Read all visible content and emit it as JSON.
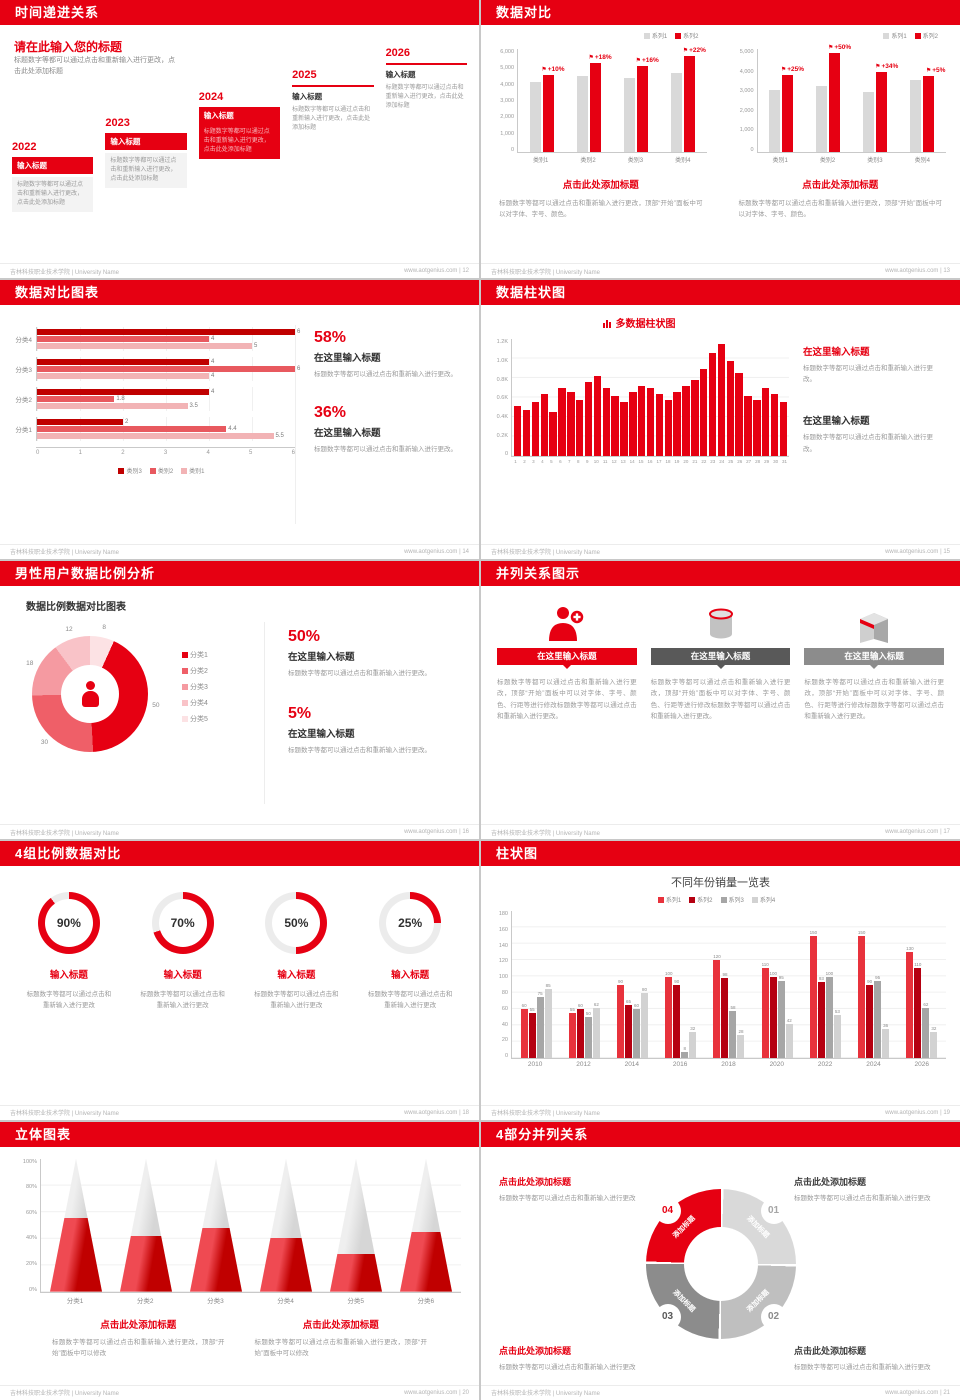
{
  "accent": "#e60012",
  "footer": {
    "school": "吉林科技职业技术学院 | University Name",
    "site": "www.aotgenius.com"
  },
  "slides": {
    "s12": {
      "header": "时间递进关系",
      "footer_right": "www.aotgenius.com | 12",
      "title": "请在此输入您的标题",
      "subtitle": "标题数字等都可以通过点击和重新输入进行更改，点击此处添加标题",
      "steps": [
        {
          "year": "2022",
          "label": "输入标题",
          "desc": "标题数字等都可以通过点击和重新输入进行更改，点击此处添加标题"
        },
        {
          "year": "2023",
          "label": "输入标题",
          "desc": "标题数字等都可以通过点击和重新输入进行更改，点击此处添加标题"
        },
        {
          "year": "2024",
          "label": "输入标题",
          "desc": "标题数字等都可以通过点击和重新输入进行更改，点击此处添加标题"
        },
        {
          "year": "2025",
          "label": "输入标题",
          "desc": "标题数字等都可以通过点击和重新输入进行更改，点击此处添加标题"
        },
        {
          "year": "2026",
          "label": "输入标题",
          "desc": "标题数字等都可以通过点击和重新输入进行更改，点击此处添加标题"
        }
      ]
    },
    "s13": {
      "header": "数据对比",
      "footer_right": "www.aotgenius.com | 13",
      "panels": [
        {
          "type": "bar",
          "legend": [
            {
              "label": "系列1",
              "color": "#d9d9d9"
            },
            {
              "label": "系列2",
              "color": "#e60012"
            }
          ],
          "yticks": [
            "6,000",
            "5,000",
            "4,000",
            "3,000",
            "2,000",
            "1,000",
            "0"
          ],
          "ymax": 6000,
          "categories": [
            "类别1",
            "类别2",
            "类别3",
            "类别4"
          ],
          "gray_values": [
            4100,
            4400,
            4300,
            4600
          ],
          "red_values": [
            4510,
            5192,
            4988,
            5612
          ],
          "pct_labels": [
            "+10%",
            "+18%",
            "+16%",
            "+22%"
          ],
          "title": "点击此处添加标题",
          "desc": "标题数字等都可以通过点击和重新输入进行更改，顶部“开始”面板中可以对字体、字号、颜色。"
        },
        {
          "type": "bar",
          "legend": [
            {
              "label": "系列1",
              "color": "#d9d9d9"
            },
            {
              "label": "系列2",
              "color": "#e60012"
            }
          ],
          "yticks": [
            "5,000",
            "4,000",
            "3,000",
            "2,000",
            "1,000",
            "0"
          ],
          "ymax": 5000,
          "categories": [
            "类别1",
            "类别2",
            "类别3",
            "类别4"
          ],
          "gray_values": [
            3000,
            3200,
            2900,
            3500
          ],
          "red_values": [
            3750,
            4800,
            3900,
            3675
          ],
          "pct_labels": [
            "+25%",
            "+50%",
            "+34%",
            "+5%"
          ],
          "title": "点击此处添加标题",
          "desc": "标题数字等都可以通过点击和重新输入进行更改，顶部“开始”面板中可以对字体、字号、颜色。"
        }
      ]
    },
    "s14": {
      "header": "数据对比图表",
      "footer_right": "www.aotgenius.com | 14",
      "chart": {
        "type": "bar",
        "xmax": 6,
        "xticks": [
          "0",
          "1",
          "2",
          "3",
          "4",
          "5",
          "6"
        ],
        "series_colors": [
          "#c00000",
          "#e8595f",
          "#f2b3b5"
        ],
        "groups": [
          {
            "label": "分类4",
            "values": [
              6,
              4,
              5
            ]
          },
          {
            "label": "分类3",
            "values": [
              4,
              6,
              4
            ]
          },
          {
            "label": "分类2",
            "values": [
              4,
              1.8,
              3.5
            ]
          },
          {
            "label": "分类1",
            "values": [
              2,
              4.4,
              5.5
            ]
          }
        ],
        "legend": [
          {
            "label": "类别3",
            "color": "#c00000"
          },
          {
            "label": "类别2",
            "color": "#e8595f"
          },
          {
            "label": "类别1",
            "color": "#f2b3b5"
          }
        ]
      },
      "stats": [
        {
          "value": "58%",
          "title": "在这里输入标题",
          "desc": "标题数字等都可以通过点击和重新输入进行更改。"
        },
        {
          "value": "36%",
          "title": "在这里输入标题",
          "desc": "标题数字等都可以通过点击和重新输入进行更改。"
        }
      ]
    },
    "s15": {
      "header": "数据柱状图",
      "footer_right": "www.aotgenius.com | 15",
      "chart": {
        "type": "bar",
        "title": "多数据柱状图",
        "yticks": [
          "1.2K",
          "1.0K",
          "0.8K",
          "0.6K",
          "0.4K",
          "0.2K",
          "0"
        ],
        "ymax": 1200,
        "values": [
          520,
          480,
          560,
          640,
          460,
          700,
          660,
          580,
          760,
          820,
          700,
          620,
          560,
          660,
          720,
          700,
          640,
          580,
          660,
          720,
          780,
          900,
          1060,
          1150,
          980,
          860,
          620,
          580,
          700,
          640,
          560
        ],
        "xlabels": [
          "1",
          "2",
          "3",
          "4",
          "5",
          "6",
          "7",
          "8",
          "9",
          "10",
          "11",
          "12",
          "13",
          "14",
          "15",
          "16",
          "17",
          "18",
          "19",
          "20",
          "21",
          "22",
          "23",
          "24",
          "25",
          "26",
          "27",
          "28",
          "29",
          "30",
          "31"
        ]
      },
      "stats": [
        {
          "title": "在这里输入标题",
          "desc": "标题数字等都可以通过点击和重新输入进行更改。"
        },
        {
          "title": "在这里输入标题",
          "desc": "标题数字等都可以通过点击和重新输入进行更改。"
        }
      ]
    },
    "s16": {
      "header": "男性用户数据比例分析",
      "footer_right": "www.aotgenius.com | 16",
      "chart_title": "数据比例数据对比图表",
      "donut": {
        "type": "pie",
        "segments": [
          {
            "value": 8,
            "label": "8",
            "color": "#fce2e4"
          },
          {
            "value": 50,
            "label": "50",
            "color": "#e60012"
          },
          {
            "value": 30,
            "label": "30",
            "color": "#ef5f68"
          },
          {
            "value": 18,
            "label": "18",
            "color": "#f59aa1"
          },
          {
            "value": 12,
            "label": "12",
            "color": "#f9c3c8"
          }
        ],
        "legend": [
          {
            "label": "分类1",
            "color": "#e60012"
          },
          {
            "label": "分类2",
            "color": "#ef5f68"
          },
          {
            "label": "分类3",
            "color": "#f59aa1"
          },
          {
            "label": "分类4",
            "color": "#f9c3c8"
          },
          {
            "label": "分类5",
            "color": "#fce2e4"
          }
        ]
      },
      "stats": [
        {
          "value": "50%",
          "title": "在这里输入标题",
          "desc": "标题数字等都可以通过点击和重新输入进行更改。"
        },
        {
          "value": "5%",
          "title": "在这里输入标题",
          "desc": "标题数字等都可以通过点击和重新输入进行更改。"
        }
      ]
    },
    "s17": {
      "header": "并列关系图示",
      "footer_right": "www.aotgenius.com | 17",
      "columns": [
        {
          "icon": "nurse-icon",
          "title": "在这里输入标题",
          "color": "#e60012",
          "desc": "标题数字等都可以通过点击和重新输入进行更改，顶部“开始”面板中可以对字体、字号、颜色、行距等进行修改标题数字等都可以通过点击和重新输入进行更改。"
        },
        {
          "icon": "database-icon",
          "title": "在这里输入标题",
          "color": "#595959",
          "desc": "标题数字等都可以通过点击和重新输入进行更改，顶部“开始”面板中可以对字体、字号、颜色、行距等进行修改标题数字等都可以通过点击和重新输入进行更改。"
        },
        {
          "icon": "building-icon",
          "title": "在这里输入标题",
          "color": "#8c8c8c",
          "desc": "标题数字等都可以通过点击和重新输入进行更改，顶部“开始”面板中可以对字体、字号、颜色、行距等进行修改标题数字等都可以通过点击和重新输入进行更改。"
        }
      ]
    },
    "s18": {
      "header": "4组比例数据对比",
      "footer_right": "www.aotgenius.com | 18",
      "rings": [
        {
          "percent": 90,
          "value_label": "90%",
          "title": "输入标题",
          "desc": "标题数字等都可以通过点击和重新输入进行更改"
        },
        {
          "percent": 70,
          "value_label": "70%",
          "title": "输入标题",
          "desc": "标题数字等都可以通过点击和重新输入进行更改"
        },
        {
          "percent": 50,
          "value_label": "50%",
          "title": "输入标题",
          "desc": "标题数字等都可以通过点击和重新输入进行更改"
        },
        {
          "percent": 25,
          "value_label": "25%",
          "title": "输入标题",
          "desc": "标题数字等都可以通过点击和重新输入进行更改"
        }
      ]
    },
    "s19": {
      "header": "柱状图",
      "footer_right": "www.aotgenius.com | 19",
      "chart": {
        "type": "bar",
        "title": "不同年份销量一览表",
        "ymax": 180,
        "yticks": [
          "180",
          "160",
          "140",
          "120",
          "100",
          "80",
          "60",
          "40",
          "20",
          "0"
        ],
        "categories": [
          "2010",
          "2012",
          "2014",
          "2016",
          "2018",
          "2020",
          "2022",
          "2024",
          "2026"
        ],
        "series": [
          {
            "label": "系列1",
            "color": "#e8323c",
            "values": [
              60,
              55,
              90,
              100,
              120,
              110,
              150,
              150,
              130
            ]
          },
          {
            "label": "系列2",
            "color": "#b50011",
            "values": [
              55,
              60,
              65,
              90,
              98,
              100,
              93,
              90,
              110
            ]
          },
          {
            "label": "系列3",
            "color": "#a6a6a6",
            "values": [
              75,
              50,
              60,
              8,
              58,
              95,
              100,
              95,
              62
            ]
          },
          {
            "label": "系列4",
            "color": "#d2d2d2",
            "values": [
              85,
              62,
              80,
              32,
              28,
              42,
              53,
              36,
              32
            ]
          }
        ]
      }
    },
    "s20": {
      "header": "立体图表",
      "footer_right": "www.aotgenius.com | 20",
      "chart": {
        "type": "bar",
        "yticks": [
          "100%",
          "80%",
          "60%",
          "40%",
          "20%",
          "0%"
        ],
        "cones": [
          {
            "label": "分类1",
            "percent": 55
          },
          {
            "label": "分类2",
            "percent": 42
          },
          {
            "label": "分类3",
            "percent": 48
          },
          {
            "label": "分类4",
            "percent": 40
          },
          {
            "label": "分类5",
            "percent": 28
          },
          {
            "label": "分类6",
            "percent": 45
          }
        ]
      },
      "notes": [
        {
          "title": "点击此处添加标题",
          "desc": "标题数字等都可以通过点击和重新输入进行更改，顶部“开始”面板中可以修改"
        },
        {
          "title": "点击此处添加标题",
          "desc": "标题数字等都可以通过点击和重新输入进行更改，顶部“开始”面板中可以修改"
        }
      ]
    },
    "s21": {
      "header": "4部分并列关系",
      "footer_right": "www.aotgenius.com | 21",
      "wheel": {
        "segments": [
          {
            "num": "01",
            "label": "添加标题",
            "color": "#d9d9d9",
            "num_color": "#a6a6a6"
          },
          {
            "num": "02",
            "label": "添加标题",
            "color": "#bfbfbf",
            "num_color": "#8c8c8c"
          },
          {
            "num": "03",
            "label": "添加标题",
            "color": "#8c8c8c",
            "num_color": "#595959"
          },
          {
            "num": "04",
            "label": "添加标题",
            "color": "#e60012",
            "num_color": "#e60012"
          }
        ]
      },
      "notes": [
        {
          "title": "点击此处添加标题",
          "desc": "标题数字等都可以通过点击和重新输入进行更改"
        },
        {
          "title": "点击此处添加标题",
          "desc": "标题数字等都可以通过点击和重新输入进行更改"
        },
        {
          "title": "点击此处添加标题",
          "desc": "标题数字等都可以通过点击和重新输入进行更改"
        },
        {
          "title": "点击此处添加标题",
          "desc": "标题数字等都可以通过点击和重新输入进行更改"
        }
      ]
    }
  }
}
